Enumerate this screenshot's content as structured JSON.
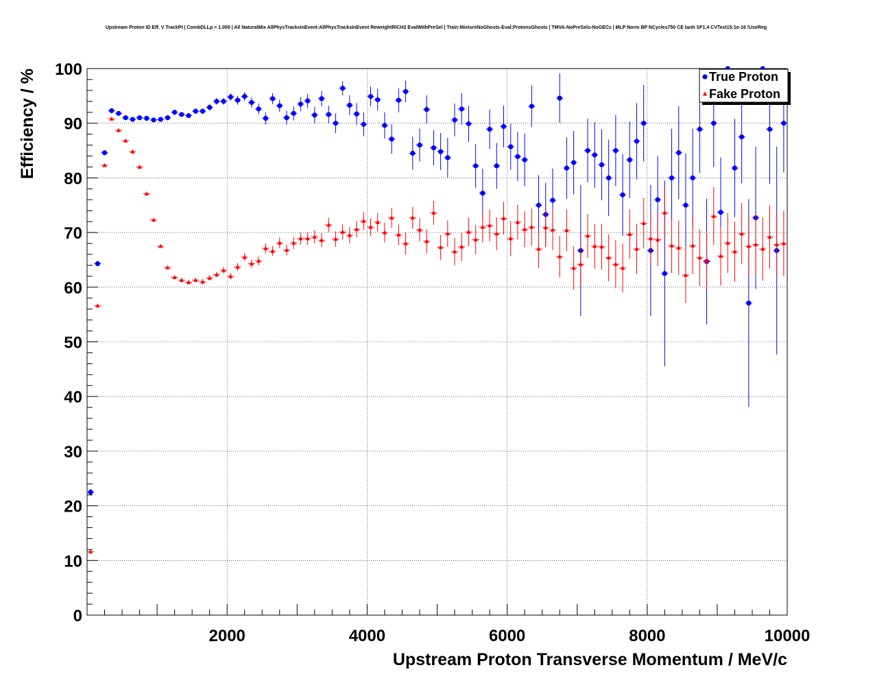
{
  "chart_data": {
    "type": "scatter",
    "title": "Upstream Proton ID Eff. V TrackPt | CombDLLp > 1.000 | All NaturalMix AllPhysTracksInEvent:AllPhysTracksInEvent ReweightRICH2 EvalWithPreSel | Train:MixtureNoGhosts-Eval:ProtonsGhosts | TMVA-NoPreSels-NoGECs | MLP Norm BP NCycles750 CE tanh SF1.4 CVTest15:1e-16 !UseReg",
    "xlabel": "Upstream Proton Transverse Momentum / MeV/c",
    "ylabel": "Efficiency / %",
    "xlim": [
      0,
      10000
    ],
    "ylim": [
      0,
      100
    ],
    "xticks": [
      2000,
      4000,
      6000,
      8000,
      10000
    ],
    "yticks": [
      0,
      10,
      20,
      30,
      40,
      50,
      60,
      70,
      80,
      90,
      100
    ],
    "grid": true,
    "legend_position": "top-right",
    "series": [
      {
        "name": "True Proton",
        "color": "#0000ff",
        "marker": "circle",
        "points": [
          [
            50,
            22.5,
            0.6
          ],
          [
            150,
            64.3,
            0.4
          ],
          [
            250,
            84.6,
            0.3
          ],
          [
            350,
            92.3,
            0.3
          ],
          [
            450,
            91.8,
            0.3
          ],
          [
            550,
            91.0,
            0.3
          ],
          [
            650,
            90.7,
            0.3
          ],
          [
            750,
            91.0,
            0.3
          ],
          [
            850,
            90.9,
            0.3
          ],
          [
            950,
            90.6,
            0.3
          ],
          [
            1050,
            90.7,
            0.3
          ],
          [
            1150,
            91.0,
            0.3
          ],
          [
            1250,
            92.0,
            0.4
          ],
          [
            1350,
            91.6,
            0.4
          ],
          [
            1450,
            91.4,
            0.4
          ],
          [
            1550,
            92.2,
            0.5
          ],
          [
            1650,
            92.2,
            0.5
          ],
          [
            1750,
            92.9,
            0.6
          ],
          [
            1850,
            94.0,
            0.6
          ],
          [
            1950,
            94.0,
            0.6
          ],
          [
            2050,
            94.8,
            0.7
          ],
          [
            2150,
            94.2,
            0.8
          ],
          [
            2250,
            94.9,
            0.8
          ],
          [
            2350,
            93.8,
            0.9
          ],
          [
            2450,
            92.6,
            1.0
          ],
          [
            2550,
            90.9,
            1.1
          ],
          [
            2650,
            94.5,
            1.0
          ],
          [
            2750,
            93.2,
            1.1
          ],
          [
            2850,
            91.0,
            1.3
          ],
          [
            2950,
            91.8,
            1.3
          ],
          [
            3050,
            93.5,
            1.3
          ],
          [
            3150,
            94.1,
            1.3
          ],
          [
            3250,
            91.5,
            1.5
          ],
          [
            3350,
            94.5,
            1.4
          ],
          [
            3450,
            91.6,
            1.6
          ],
          [
            3550,
            90.0,
            1.8
          ],
          [
            3650,
            96.4,
            1.3
          ],
          [
            3750,
            93.3,
            1.8
          ],
          [
            3850,
            91.7,
            2.0
          ],
          [
            3950,
            89.8,
            2.2
          ],
          [
            4050,
            94.9,
            1.8
          ],
          [
            4150,
            94.3,
            2.0
          ],
          [
            4250,
            89.6,
            2.4
          ],
          [
            4350,
            87.1,
            2.7
          ],
          [
            4450,
            94.2,
            2.2
          ],
          [
            4550,
            95.8,
            2.0
          ],
          [
            4650,
            84.5,
            3.0
          ],
          [
            4750,
            86.0,
            3.0
          ],
          [
            4850,
            92.5,
            2.6
          ],
          [
            4950,
            85.5,
            3.2
          ],
          [
            5050,
            84.8,
            3.4
          ],
          [
            5150,
            83.7,
            3.6
          ],
          [
            5250,
            90.6,
            3.0
          ],
          [
            5350,
            92.6,
            2.9
          ],
          [
            5450,
            89.9,
            3.3
          ],
          [
            5550,
            82.2,
            4.0
          ],
          [
            5650,
            77.2,
            4.5
          ],
          [
            5750,
            88.9,
            3.6
          ],
          [
            5850,
            82.2,
            4.2
          ],
          [
            5950,
            89.4,
            3.8
          ],
          [
            6050,
            85.7,
            4.2
          ],
          [
            6150,
            83.9,
            4.5
          ],
          [
            6250,
            83.3,
            4.8
          ],
          [
            6350,
            93.1,
            3.8
          ],
          [
            6450,
            75.0,
            5.5
          ],
          [
            6550,
            73.3,
            5.8
          ],
          [
            6650,
            75.9,
            5.8
          ],
          [
            6750,
            94.6,
            4.5
          ],
          [
            6850,
            81.8,
            5.6
          ],
          [
            6950,
            82.8,
            5.8
          ],
          [
            7050,
            66.7,
            12.0
          ],
          [
            7150,
            85.0,
            5.8
          ],
          [
            7250,
            84.2,
            6.0
          ],
          [
            7350,
            82.4,
            6.5
          ],
          [
            7450,
            80.0,
            7.0
          ],
          [
            7550,
            85.0,
            6.5
          ],
          [
            7650,
            76.9,
            7.5
          ],
          [
            7750,
            83.3,
            7.0
          ],
          [
            7850,
            86.7,
            7.0
          ],
          [
            7950,
            90.0,
            7.0
          ],
          [
            8050,
            66.7,
            12.0
          ],
          [
            8150,
            76.0,
            8.0
          ],
          [
            8250,
            62.5,
            17.0
          ],
          [
            8350,
            80.0,
            9.0
          ],
          [
            8450,
            84.6,
            8.5
          ],
          [
            8550,
            75.0,
            9.5
          ],
          [
            8650,
            80.0,
            9.0
          ],
          [
            8750,
            88.9,
            8.0
          ],
          [
            8850,
            64.7,
            11.5
          ],
          [
            8950,
            90.0,
            8.0
          ],
          [
            9050,
            73.7,
            10.0
          ],
          [
            9150,
            100.0,
            5.0
          ],
          [
            9250,
            81.8,
            9.0
          ],
          [
            9350,
            87.5,
            8.5
          ],
          [
            9450,
            57.1,
            19.0
          ],
          [
            9550,
            72.7,
            13.0
          ],
          [
            9650,
            100.0,
            5.0
          ],
          [
            9750,
            88.9,
            10.0
          ],
          [
            9850,
            66.7,
            19.0
          ],
          [
            9950,
            90.0,
            9.0
          ]
        ]
      },
      {
        "name": "Fake Proton",
        "color": "#ff0000",
        "marker": "triangle",
        "points": [
          [
            50,
            11.6,
            0.3
          ],
          [
            150,
            56.6,
            0.3
          ],
          [
            250,
            82.3,
            0.3
          ],
          [
            350,
            90.8,
            0.3
          ],
          [
            450,
            88.7,
            0.3
          ],
          [
            550,
            86.8,
            0.3
          ],
          [
            650,
            84.8,
            0.3
          ],
          [
            750,
            82.0,
            0.3
          ],
          [
            850,
            77.1,
            0.3
          ],
          [
            950,
            72.3,
            0.3
          ],
          [
            1050,
            67.5,
            0.3
          ],
          [
            1150,
            63.6,
            0.3
          ],
          [
            1250,
            61.8,
            0.3
          ],
          [
            1350,
            61.3,
            0.4
          ],
          [
            1450,
            60.9,
            0.4
          ],
          [
            1550,
            61.3,
            0.4
          ],
          [
            1650,
            61.0,
            0.5
          ],
          [
            1750,
            61.7,
            0.5
          ],
          [
            1850,
            62.3,
            0.5
          ],
          [
            1950,
            63.1,
            0.6
          ],
          [
            2050,
            62.0,
            0.6
          ],
          [
            2150,
            63.7,
            0.7
          ],
          [
            2250,
            65.5,
            0.7
          ],
          [
            2350,
            64.3,
            0.8
          ],
          [
            2450,
            64.8,
            0.8
          ],
          [
            2550,
            67.1,
            0.9
          ],
          [
            2650,
            66.6,
            0.9
          ],
          [
            2750,
            68.1,
            1.0
          ],
          [
            2850,
            66.8,
            1.0
          ],
          [
            2950,
            68.1,
            1.1
          ],
          [
            3050,
            68.9,
            1.1
          ],
          [
            3150,
            68.9,
            1.2
          ],
          [
            3250,
            69.2,
            1.2
          ],
          [
            3350,
            68.6,
            1.3
          ],
          [
            3450,
            71.4,
            1.3
          ],
          [
            3550,
            68.8,
            1.4
          ],
          [
            3650,
            70.1,
            1.4
          ],
          [
            3750,
            69.5,
            1.5
          ],
          [
            3850,
            70.6,
            1.5
          ],
          [
            3950,
            72.1,
            1.6
          ],
          [
            4050,
            71.0,
            1.6
          ],
          [
            4150,
            71.9,
            1.7
          ],
          [
            4250,
            70.0,
            1.8
          ],
          [
            4350,
            72.7,
            1.8
          ],
          [
            4450,
            69.6,
            1.9
          ],
          [
            4550,
            68.0,
            2.0
          ],
          [
            4650,
            72.7,
            2.0
          ],
          [
            4750,
            70.5,
            2.1
          ],
          [
            4850,
            68.4,
            2.2
          ],
          [
            4950,
            73.6,
            2.2
          ],
          [
            5050,
            67.3,
            2.3
          ],
          [
            5150,
            69.8,
            2.4
          ],
          [
            5250,
            66.5,
            2.5
          ],
          [
            5350,
            67.4,
            2.6
          ],
          [
            5450,
            70.1,
            2.6
          ],
          [
            5550,
            68.7,
            2.7
          ],
          [
            5650,
            71.0,
            2.8
          ],
          [
            5750,
            71.3,
            2.9
          ],
          [
            5850,
            69.8,
            3.0
          ],
          [
            5950,
            72.6,
            3.0
          ],
          [
            6050,
            68.9,
            3.2
          ],
          [
            6150,
            71.9,
            3.2
          ],
          [
            6250,
            70.6,
            3.3
          ],
          [
            6350,
            71.0,
            3.4
          ],
          [
            6450,
            67.0,
            3.5
          ],
          [
            6550,
            70.9,
            3.6
          ],
          [
            6650,
            70.5,
            3.7
          ],
          [
            6750,
            65.6,
            3.8
          ],
          [
            6850,
            70.4,
            3.8
          ],
          [
            6950,
            63.5,
            4.0
          ],
          [
            7050,
            64.2,
            4.0
          ],
          [
            7150,
            69.4,
            4.0
          ],
          [
            7250,
            67.5,
            4.1
          ],
          [
            7350,
            67.4,
            4.2
          ],
          [
            7450,
            65.4,
            4.3
          ],
          [
            7550,
            64.2,
            4.4
          ],
          [
            7650,
            63.5,
            4.5
          ],
          [
            7750,
            69.7,
            4.5
          ],
          [
            7850,
            67.0,
            4.6
          ],
          [
            7950,
            71.7,
            4.6
          ],
          [
            8050,
            68.9,
            4.7
          ],
          [
            8150,
            68.7,
            4.8
          ],
          [
            8250,
            73.6,
            4.9
          ],
          [
            8350,
            67.6,
            5.0
          ],
          [
            8450,
            67.2,
            5.0
          ],
          [
            8550,
            62.2,
            5.1
          ],
          [
            8650,
            67.6,
            5.2
          ],
          [
            8750,
            65.4,
            5.2
          ],
          [
            8850,
            64.8,
            5.3
          ],
          [
            8950,
            73.0,
            5.3
          ],
          [
            9050,
            65.7,
            5.4
          ],
          [
            9150,
            68.1,
            5.5
          ],
          [
            9250,
            66.5,
            5.5
          ],
          [
            9350,
            69.8,
            5.6
          ],
          [
            9450,
            67.5,
            5.6
          ],
          [
            9550,
            67.8,
            5.7
          ],
          [
            9650,
            67.0,
            5.8
          ],
          [
            9750,
            69.2,
            5.8
          ],
          [
            9850,
            67.8,
            5.9
          ],
          [
            9950,
            68.0,
            6.0
          ]
        ]
      }
    ]
  }
}
